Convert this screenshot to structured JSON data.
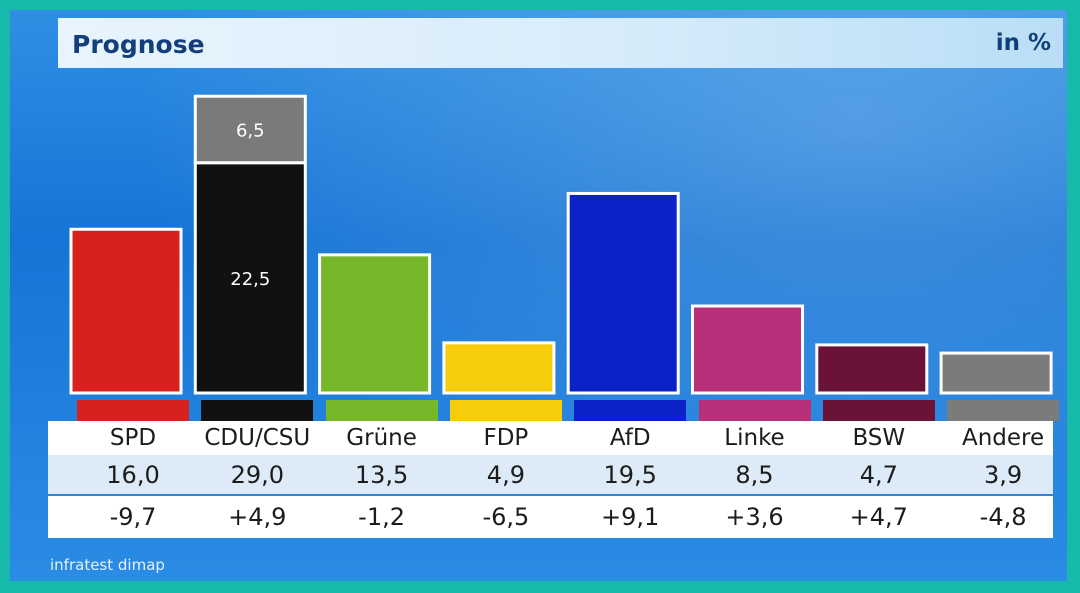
{
  "header": {
    "title": "Prognose",
    "unit": "in %"
  },
  "source": "infratest dimap",
  "chart_data": {
    "type": "bar",
    "title": "Prognose",
    "ylabel": "in %",
    "categories": [
      "SPD",
      "CDU/CSU",
      "Grüne",
      "FDP",
      "AfD",
      "Linke",
      "BSW",
      "Andere"
    ],
    "values": [
      16.0,
      29.0,
      13.5,
      4.9,
      19.5,
      8.5,
      4.7,
      3.9
    ],
    "value_labels": [
      "16,0",
      "29,0",
      "13,5",
      "4,9",
      "19,5",
      "8,5",
      "4,7",
      "3,9"
    ],
    "changes": [
      "-9,7",
      "+4,9",
      "-1,2",
      "-6,5",
      "+9,1",
      "+3,6",
      "+4,7",
      "-4,8"
    ],
    "colors": [
      "#d8201f",
      "#111111",
      "#76b82a",
      "#f7cc0a",
      "#0b22c8",
      "#b8307a",
      "#6a1238",
      "#7b7b7b"
    ],
    "stacked_segments": [
      {
        "category": "CDU/CSU",
        "name": "CDU",
        "value": 22.5,
        "label": "22,5",
        "color": "#111111"
      },
      {
        "category": "CDU/CSU",
        "name": "CSU",
        "value": 6.5,
        "label": "6,5",
        "color": "#7a7a7a"
      }
    ],
    "ylim": [
      0,
      30
    ]
  }
}
